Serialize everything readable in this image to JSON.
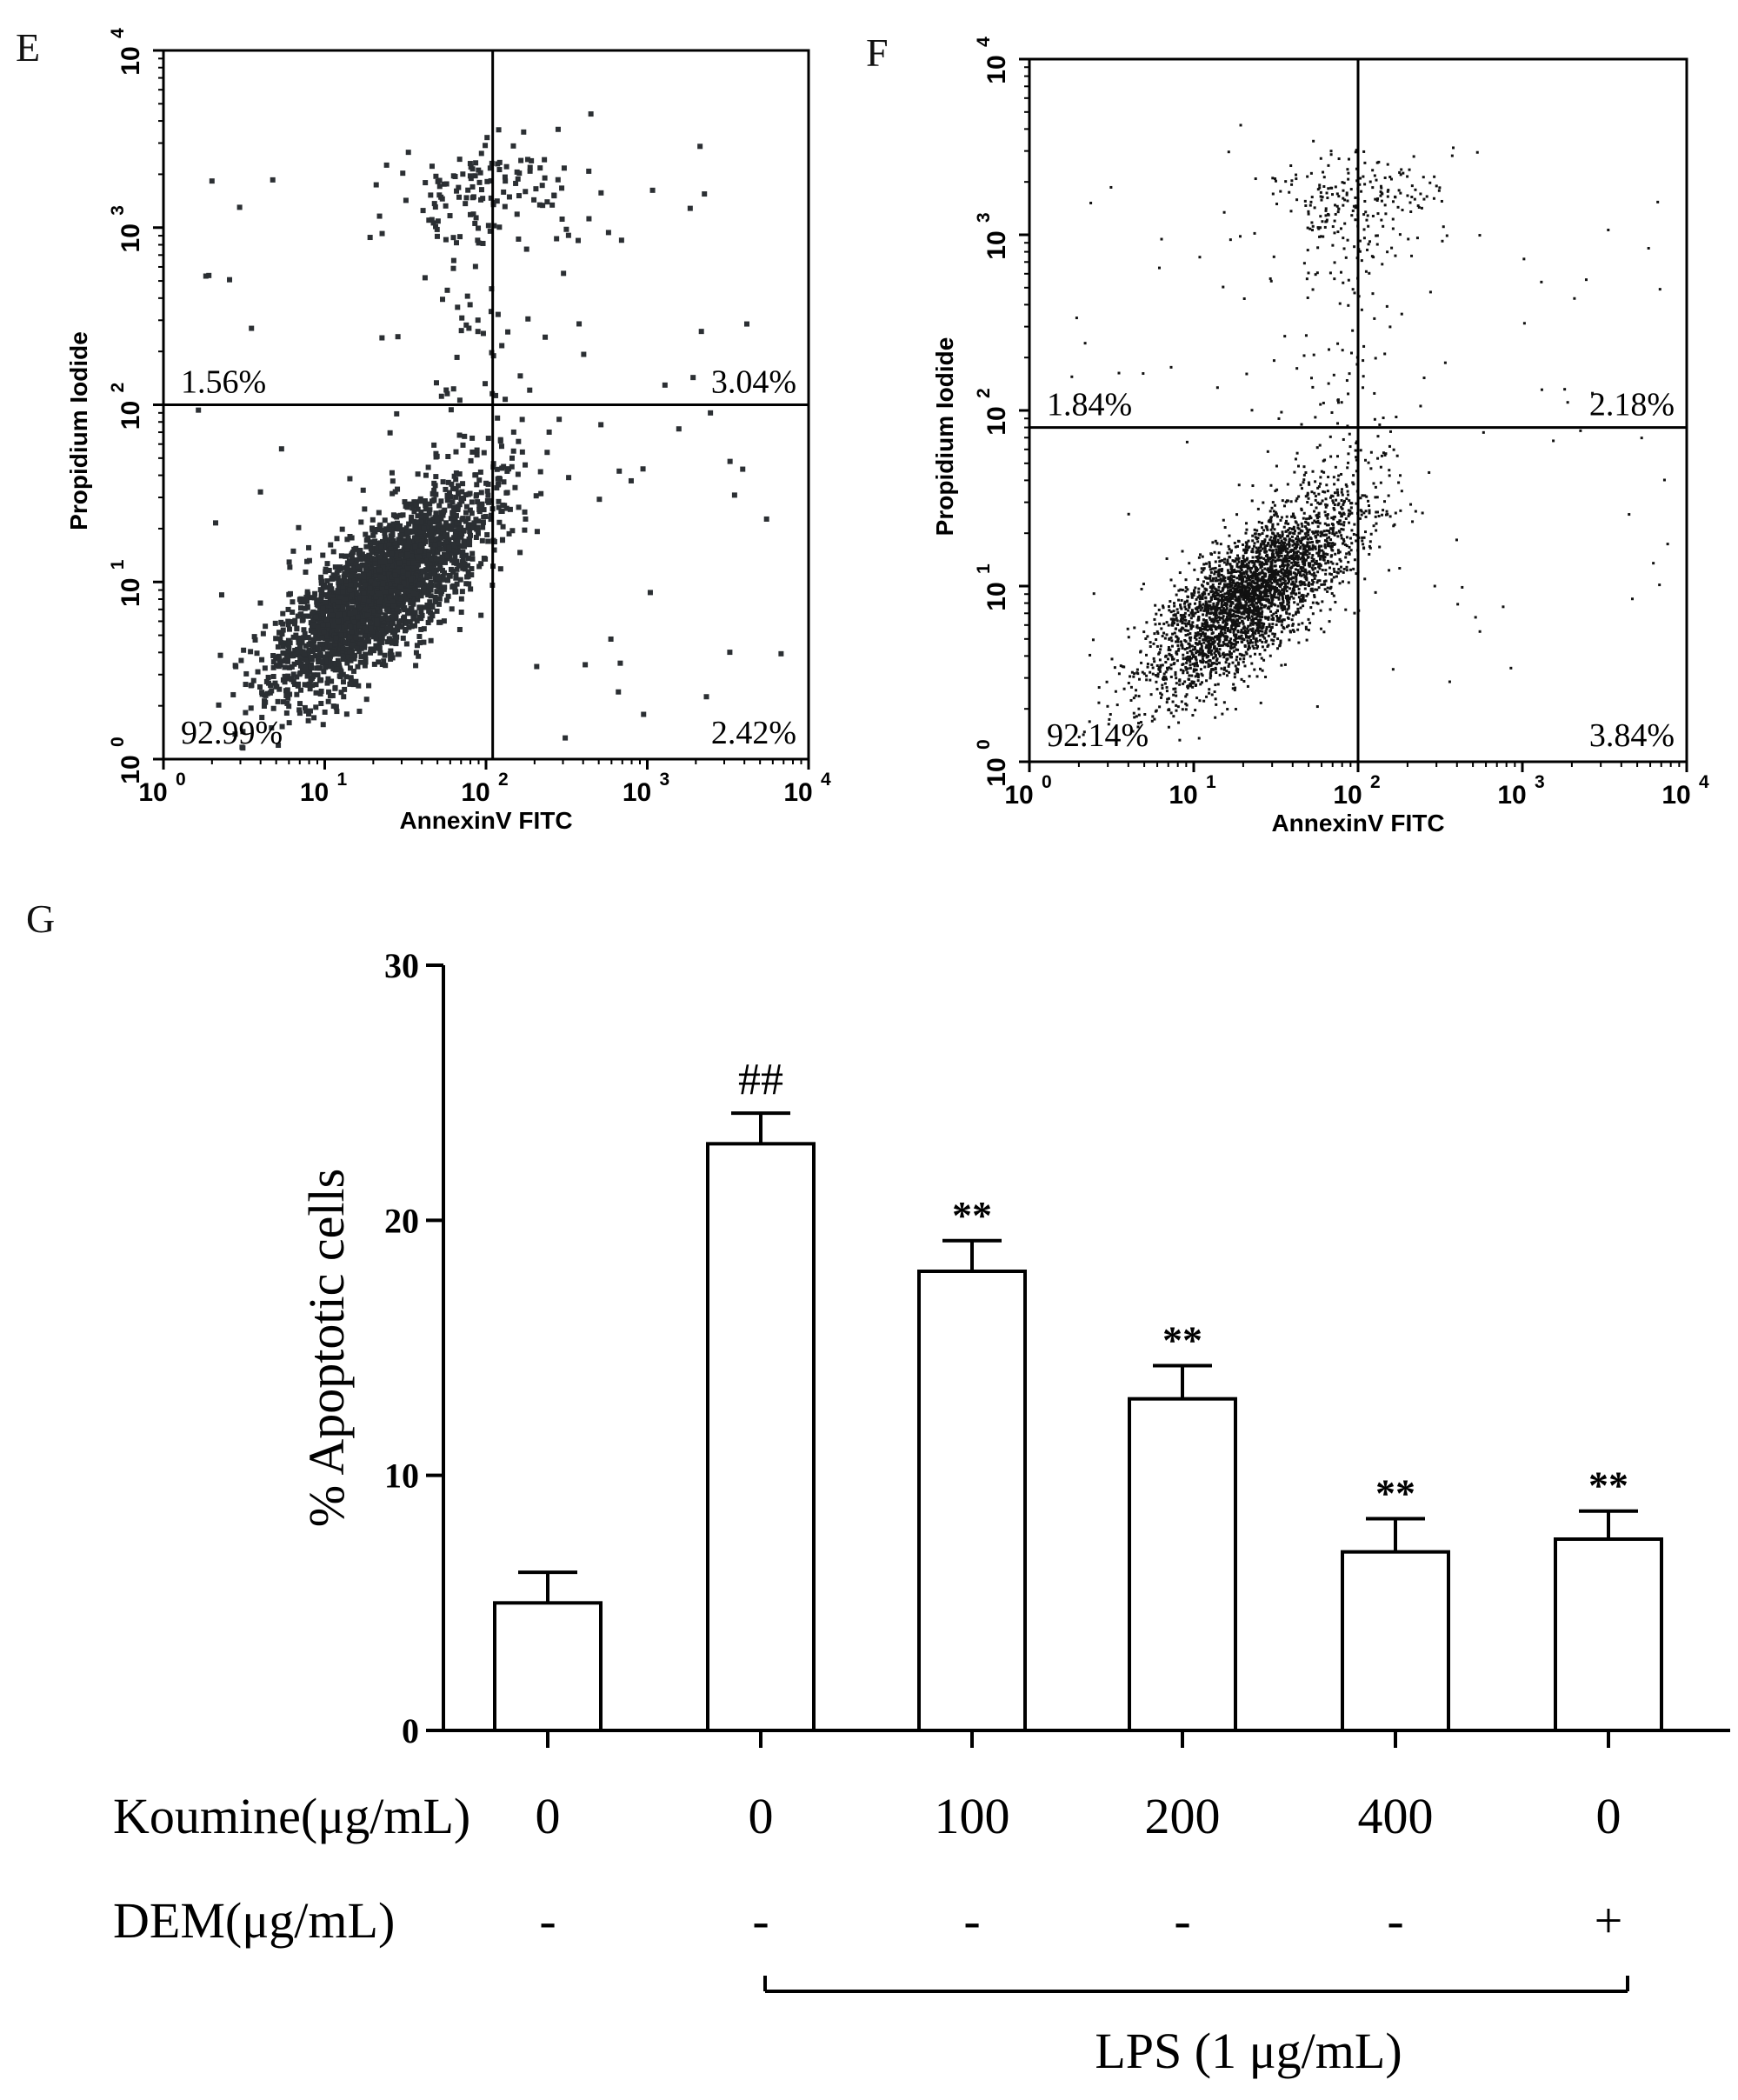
{
  "panels": {
    "e_letter": "E",
    "f_letter": "F",
    "g_letter": "G"
  },
  "chart_data": [
    {
      "panel": "E",
      "type": "scatter",
      "xlabel": "AnnexinV FITC",
      "ylabel": "Propidium Iodide",
      "x_scale": "log",
      "y_scale": "log",
      "xlim": [
        1,
        10000
      ],
      "ylim": [
        1,
        10000
      ],
      "x_ticks": [
        "10",
        "10",
        "10",
        "10",
        "10"
      ],
      "x_tick_exp": [
        "0",
        "1",
        "2",
        "3",
        "4"
      ],
      "y_ticks": [
        "10",
        "10",
        "10",
        "10",
        "10"
      ],
      "y_tick_exp": [
        "0",
        "1",
        "2",
        "3",
        "4"
      ],
      "gate_x": 110,
      "gate_y": 100,
      "quadrants": {
        "upper_left": "1.56%",
        "upper_right": "3.04%",
        "lower_left": "92.99%",
        "lower_right": "2.42%"
      },
      "population": {
        "center_log_x": 1.35,
        "center_log_y": 0.95,
        "spread_log_x": 0.32,
        "spread_log_y": 0.28,
        "n": 2600
      },
      "dot_color": "#2b2f33",
      "dot_style": "large"
    },
    {
      "panel": "F",
      "type": "scatter",
      "xlabel": "AnnexinV FITC",
      "ylabel": "Propidium Iodide",
      "x_scale": "log",
      "y_scale": "log",
      "xlim": [
        1,
        10000
      ],
      "ylim": [
        1,
        10000
      ],
      "x_ticks": [
        "10",
        "10",
        "10",
        "10",
        "10"
      ],
      "x_tick_exp": [
        "0",
        "1",
        "2",
        "3",
        "4"
      ],
      "y_ticks": [
        "10",
        "10",
        "10",
        "10",
        "10"
      ],
      "y_tick_exp": [
        "0",
        "1",
        "2",
        "3",
        "4"
      ],
      "gate_x": 100,
      "gate_y": 80,
      "quadrants": {
        "upper_left": "1.84%",
        "upper_right": "2.18%",
        "lower_left": "92.14%",
        "lower_right": "3.84%"
      },
      "population": {
        "center_log_x": 1.35,
        "center_log_y": 0.95,
        "spread_log_x": 0.32,
        "spread_log_y": 0.28,
        "n": 3200
      },
      "dot_color": "#111111",
      "dot_style": "small"
    },
    {
      "panel": "G",
      "type": "bar",
      "ylabel": "% Apoptotic cells",
      "ylim": [
        0,
        30
      ],
      "y_ticks": [
        "0",
        "10",
        "20",
        "30"
      ],
      "values": [
        5,
        23,
        18,
        13,
        7,
        7.5
      ],
      "errors": [
        1.2,
        1.2,
        1.2,
        1.3,
        1.3,
        1.1
      ],
      "significance": [
        "",
        "##",
        "**",
        "**",
        "**",
        "**"
      ],
      "koumine_label": "Koumine(μg/mL)",
      "koumine_values": [
        "0",
        "0",
        "100",
        "200",
        "400",
        "0"
      ],
      "dem_label": "DEM(μg/mL)",
      "dem_values": [
        "-",
        "-",
        "-",
        "-",
        "-",
        "+"
      ],
      "lps_label": "LPS (1 μg/mL)"
    }
  ]
}
